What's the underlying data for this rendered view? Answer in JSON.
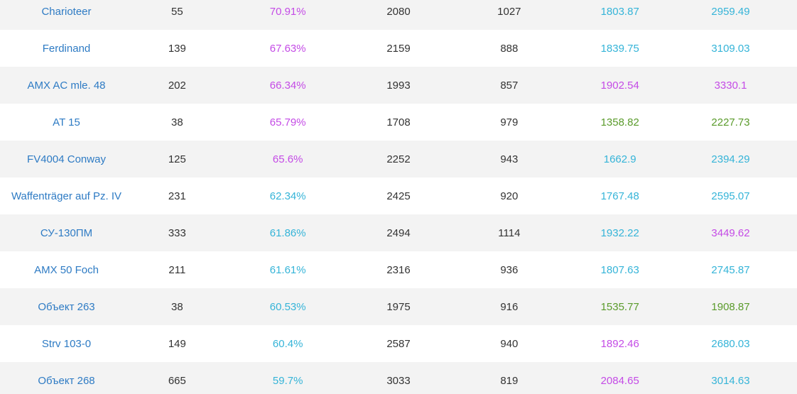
{
  "colors": {
    "link": "#2e7bc4",
    "purple": "#c44be6",
    "cyan": "#35b4d8",
    "green": "#5a9b2b",
    "text": "#333333",
    "row_alt_bg": "#f3f3f3"
  },
  "rows": [
    {
      "name": "Charioteer",
      "battles": "55",
      "winrate": "70.91%",
      "winrate_color": "purple",
      "damage": "2080",
      "exp": "1027",
      "wn8_a": "1803.87",
      "wn8_a_color": "cyan",
      "wn8_b": "2959.49",
      "wn8_b_color": "cyan"
    },
    {
      "name": "Ferdinand",
      "battles": "139",
      "winrate": "67.63%",
      "winrate_color": "purple",
      "damage": "2159",
      "exp": "888",
      "wn8_a": "1839.75",
      "wn8_a_color": "cyan",
      "wn8_b": "3109.03",
      "wn8_b_color": "cyan"
    },
    {
      "name": "AMX AC mle. 48",
      "battles": "202",
      "winrate": "66.34%",
      "winrate_color": "purple",
      "damage": "1993",
      "exp": "857",
      "wn8_a": "1902.54",
      "wn8_a_color": "purple",
      "wn8_b": "3330.1",
      "wn8_b_color": "purple"
    },
    {
      "name": "AT 15",
      "battles": "38",
      "winrate": "65.79%",
      "winrate_color": "purple",
      "damage": "1708",
      "exp": "979",
      "wn8_a": "1358.82",
      "wn8_a_color": "green",
      "wn8_b": "2227.73",
      "wn8_b_color": "green"
    },
    {
      "name": "FV4004 Conway",
      "battles": "125",
      "winrate": "65.6%",
      "winrate_color": "purple",
      "damage": "2252",
      "exp": "943",
      "wn8_a": "1662.9",
      "wn8_a_color": "cyan",
      "wn8_b": "2394.29",
      "wn8_b_color": "cyan"
    },
    {
      "name": "Waffenträger auf Pz. IV",
      "battles": "231",
      "winrate": "62.34%",
      "winrate_color": "cyan",
      "damage": "2425",
      "exp": "920",
      "wn8_a": "1767.48",
      "wn8_a_color": "cyan",
      "wn8_b": "2595.07",
      "wn8_b_color": "cyan"
    },
    {
      "name": "СУ-130ПМ",
      "battles": "333",
      "winrate": "61.86%",
      "winrate_color": "cyan",
      "damage": "2494",
      "exp": "1114",
      "wn8_a": "1932.22",
      "wn8_a_color": "cyan",
      "wn8_b": "3449.62",
      "wn8_b_color": "purple"
    },
    {
      "name": "AMX 50 Foch",
      "battles": "211",
      "winrate": "61.61%",
      "winrate_color": "cyan",
      "damage": "2316",
      "exp": "936",
      "wn8_a": "1807.63",
      "wn8_a_color": "cyan",
      "wn8_b": "2745.87",
      "wn8_b_color": "cyan"
    },
    {
      "name": "Объект 263",
      "battles": "38",
      "winrate": "60.53%",
      "winrate_color": "cyan",
      "damage": "1975",
      "exp": "916",
      "wn8_a": "1535.77",
      "wn8_a_color": "green",
      "wn8_b": "1908.87",
      "wn8_b_color": "green"
    },
    {
      "name": "Strv 103-0",
      "battles": "149",
      "winrate": "60.4%",
      "winrate_color": "cyan",
      "damage": "2587",
      "exp": "940",
      "wn8_a": "1892.46",
      "wn8_a_color": "purple",
      "wn8_b": "2680.03",
      "wn8_b_color": "cyan"
    },
    {
      "name": "Объект 268",
      "battles": "665",
      "winrate": "59.7%",
      "winrate_color": "cyan",
      "damage": "3033",
      "exp": "819",
      "wn8_a": "2084.65",
      "wn8_a_color": "purple",
      "wn8_b": "3014.63",
      "wn8_b_color": "cyan"
    }
  ]
}
